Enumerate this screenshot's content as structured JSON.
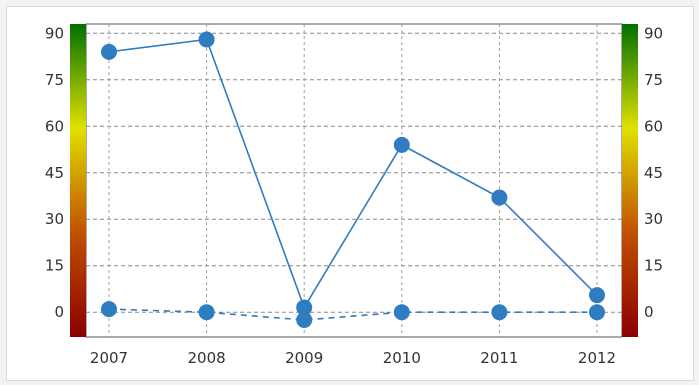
{
  "chart_data": {
    "type": "line",
    "categories": [
      "2007",
      "2008",
      "2009",
      "2010",
      "2011",
      "2012"
    ],
    "series": [
      {
        "values": [
          84,
          88,
          1.5,
          54,
          37,
          5.5
        ],
        "style": "solid",
        "color": "#2f7cc0"
      },
      {
        "values": [
          1,
          0,
          -2.5,
          0,
          0,
          0
        ],
        "style": "dashed",
        "color": "#2f7cc0"
      }
    ],
    "ylim": [
      -8,
      93
    ],
    "yticks": [
      "0",
      "15",
      "30",
      "45",
      "60",
      "75",
      "90"
    ],
    "ytick_values": [
      0,
      15,
      30,
      45,
      60,
      75,
      90
    ],
    "grid": true,
    "color_scale": [
      "#8b0000",
      "#c05000",
      "#e0e000",
      "#007000"
    ],
    "title": "",
    "xlabel": "",
    "ylabel": ""
  }
}
